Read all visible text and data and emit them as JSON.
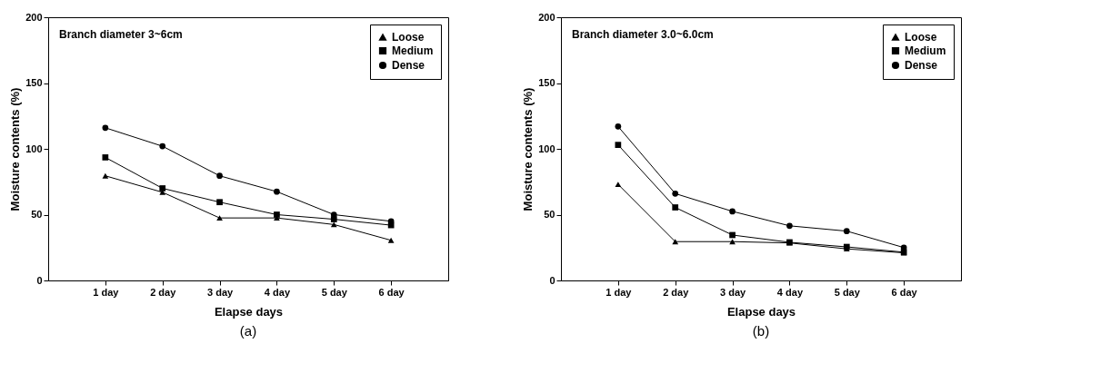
{
  "chart_data": [
    {
      "type": "line",
      "xlabel": "Elapse days",
      "ylabel": "Moisture contents (%)",
      "annotations": [
        "Branch diameter 3~6cm",
        "(a)"
      ],
      "categories": [
        "1 day",
        "2 day",
        "3 day",
        "4 day",
        "5 day",
        "6 day"
      ],
      "ylim": [
        0,
        200
      ],
      "yticks": [
        0,
        50,
        100,
        150,
        200
      ],
      "grid": false,
      "legend": "top right",
      "line_style": "solid",
      "series": [
        {
          "name": "Loose",
          "color": "#000000",
          "marker": "triangle",
          "values": [
            79.5,
            67,
            47.5,
            47.5,
            42.5,
            30.5
          ]
        },
        {
          "name": "Medium",
          "color": "#000000",
          "marker": "square",
          "values": [
            93.5,
            70,
            59.5,
            50,
            46.5,
            42
          ]
        },
        {
          "name": "Dense",
          "color": "#000000",
          "marker": "circle",
          "values": [
            116,
            102,
            79.5,
            67.5,
            50,
            45
          ]
        }
      ]
    },
    {
      "type": "line",
      "xlabel": "Elapse days",
      "ylabel": "Moisture contents (%)",
      "annotations": [
        "Branch diameter 3.0~6.0cm",
        "(b)"
      ],
      "categories": [
        "1 day",
        "2 day",
        "3 day",
        "4 day",
        "5 day",
        "6 day"
      ],
      "ylim": [
        0,
        200
      ],
      "yticks": [
        0,
        50,
        100,
        150,
        200
      ],
      "grid": false,
      "legend": "top right",
      "line_style": "solid",
      "series": [
        {
          "name": "Loose",
          "color": "#000000",
          "marker": "triangle",
          "values": [
            73,
            29.5,
            29.5,
            28.5,
            24,
            21
          ]
        },
        {
          "name": "Medium",
          "color": "#000000",
          "marker": "square",
          "values": [
            103,
            55.5,
            34.5,
            29,
            25.5,
            21.5
          ]
        },
        {
          "name": "Dense",
          "color": "#000000",
          "marker": "circle",
          "values": [
            117,
            66,
            52.5,
            41.5,
            37.5,
            25
          ]
        }
      ]
    }
  ]
}
